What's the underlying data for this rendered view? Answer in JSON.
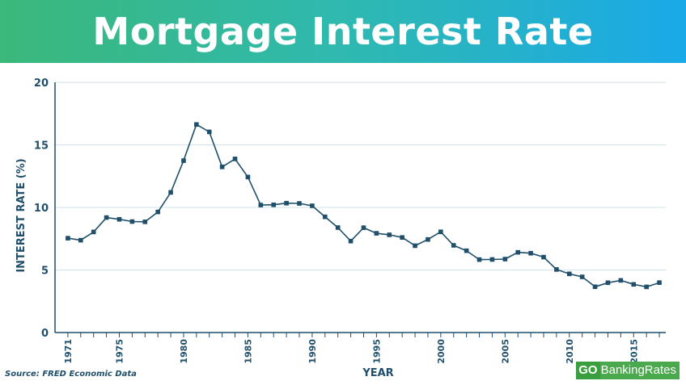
{
  "title": "Mortgage Interest Rate",
  "source": "Source: FRED Economic Data",
  "logo": {
    "prefix": "GO",
    "rest": "BankingRates"
  },
  "colors": {
    "line": "#1f4f6b",
    "grid": "#cfe3ea",
    "banner_start": "#3bb87a",
    "banner_end": "#1aa9e8",
    "logo": "#3a9d3e"
  },
  "chart_data": {
    "type": "line",
    "xlabel": "YEAR",
    "ylabel": "INTEREST RATE (%)",
    "xlim": [
      1970,
      2017.5
    ],
    "ylim": [
      0,
      20
    ],
    "yticks": [
      0,
      5,
      10,
      15,
      20
    ],
    "xtick_labels": [
      "1971",
      "1975",
      "1980",
      "1985",
      "1990",
      "1995",
      "2000",
      "2005",
      "2010",
      "2015"
    ],
    "grid": true,
    "x": [
      1971,
      1972,
      1973,
      1974,
      1975,
      1976,
      1977,
      1978,
      1979,
      1980,
      1981,
      1982,
      1983,
      1984,
      1985,
      1986,
      1987,
      1988,
      1989,
      1990,
      1991,
      1992,
      1993,
      1994,
      1995,
      1996,
      1997,
      1998,
      1999,
      2000,
      2001,
      2002,
      2003,
      2004,
      2005,
      2006,
      2007,
      2008,
      2009,
      2010,
      2011,
      2012,
      2013,
      2014,
      2015,
      2016,
      2017
    ],
    "values": [
      7.54,
      7.38,
      8.04,
      9.19,
      9.05,
      8.87,
      8.85,
      9.64,
      11.2,
      13.74,
      16.63,
      16.04,
      13.24,
      13.88,
      12.43,
      10.19,
      10.21,
      10.34,
      10.32,
      10.13,
      9.25,
      8.39,
      7.31,
      8.38,
      7.93,
      7.81,
      7.6,
      6.94,
      7.44,
      8.05,
      6.97,
      6.54,
      5.83,
      5.84,
      5.87,
      6.41,
      6.34,
      6.03,
      5.04,
      4.69,
      4.45,
      3.66,
      3.98,
      4.17,
      3.85,
      3.65,
      3.99
    ]
  }
}
